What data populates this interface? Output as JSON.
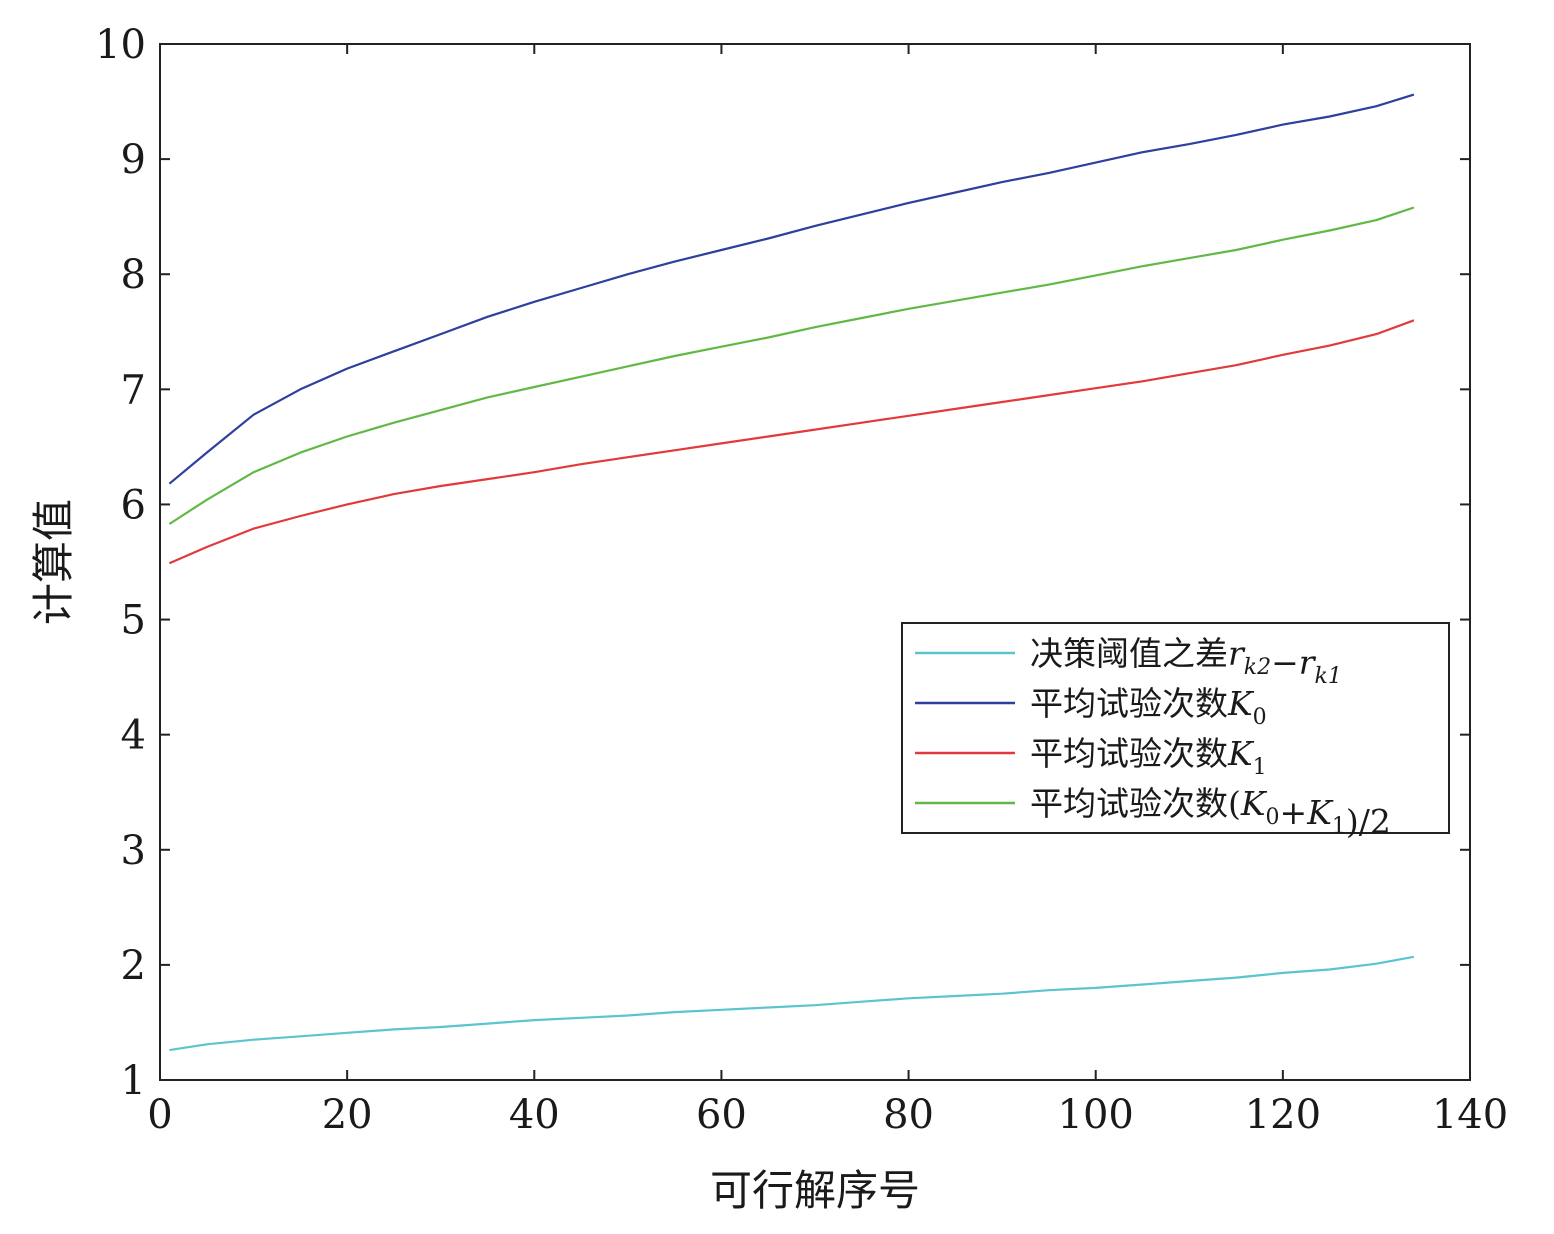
{
  "chart_data": {
    "type": "line",
    "xlabel": "可行解序号",
    "ylabel": "计算值",
    "xlim": [
      0,
      140
    ],
    "ylim": [
      1,
      10
    ],
    "xticks": [
      0,
      20,
      40,
      60,
      80,
      100,
      120,
      140
    ],
    "yticks": [
      1,
      2,
      3,
      4,
      5,
      6,
      7,
      8,
      9,
      10
    ],
    "grid": false,
    "legend_position": "center-right",
    "x": [
      1,
      5,
      10,
      15,
      20,
      25,
      30,
      35,
      40,
      45,
      50,
      55,
      60,
      65,
      70,
      75,
      80,
      85,
      90,
      95,
      100,
      105,
      110,
      115,
      120,
      125,
      130,
      134
    ],
    "series": [
      {
        "key": "threshold_diff",
        "name": "决策阈值之差",
        "legend_label": {
          "prefix": "决策阈值之差",
          "math": [
            [
              "r",
              "k2"
            ],
            "−",
            [
              "r",
              "k1"
            ]
          ]
        },
        "color": "#5bc4cf",
        "values": [
          1.26,
          1.31,
          1.35,
          1.38,
          1.41,
          1.44,
          1.46,
          1.49,
          1.52,
          1.54,
          1.56,
          1.59,
          1.61,
          1.63,
          1.65,
          1.68,
          1.71,
          1.73,
          1.75,
          1.78,
          1.8,
          1.83,
          1.86,
          1.89,
          1.93,
          1.96,
          2.01,
          2.07
        ]
      },
      {
        "key": "k0",
        "name": "平均试验次数",
        "legend_label": {
          "prefix": "平均试验次数",
          "math": [
            [
              "K",
              "0"
            ]
          ]
        },
        "color": "#2e3f9e",
        "values": [
          6.18,
          6.45,
          6.78,
          7.0,
          7.18,
          7.33,
          7.48,
          7.63,
          7.76,
          7.88,
          8.0,
          8.11,
          8.21,
          8.31,
          8.42,
          8.52,
          8.62,
          8.71,
          8.8,
          8.88,
          8.97,
          9.06,
          9.13,
          9.21,
          9.3,
          9.37,
          9.46,
          9.56
        ]
      },
      {
        "key": "k1",
        "name": "平均试验次数",
        "legend_label": {
          "prefix": "平均试验次数",
          "math": [
            [
              "K",
              "1"
            ]
          ]
        },
        "color": "#e23a3a",
        "values": [
          5.49,
          5.63,
          5.79,
          5.9,
          6.0,
          6.09,
          6.16,
          6.22,
          6.28,
          6.35,
          6.41,
          6.47,
          6.53,
          6.59,
          6.65,
          6.71,
          6.77,
          6.83,
          6.89,
          6.95,
          7.01,
          7.07,
          7.14,
          7.21,
          7.3,
          7.38,
          7.48,
          7.6
        ]
      },
      {
        "key": "k_avg",
        "name": "平均试验次数",
        "legend_label": {
          "prefix": "平均试验次数",
          "math": [
            "(",
            [
              "K",
              "0"
            ],
            "+",
            [
              "K",
              "1"
            ],
            ")/2"
          ]
        },
        "color": "#62b847",
        "values": [
          5.83,
          6.04,
          6.28,
          6.45,
          6.59,
          6.71,
          6.82,
          6.93,
          7.02,
          7.11,
          7.2,
          7.29,
          7.37,
          7.45,
          7.54,
          7.62,
          7.7,
          7.77,
          7.84,
          7.91,
          7.99,
          8.07,
          8.14,
          8.21,
          8.3,
          8.38,
          8.47,
          8.58
        ]
      }
    ]
  }
}
